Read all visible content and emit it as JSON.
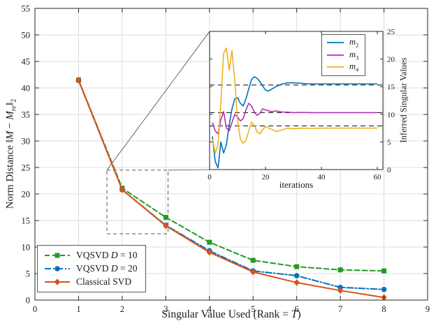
{
  "figure": {
    "bg": "#ffffff",
    "axis_color": "#262626",
    "grid_color": "#dcdcdc"
  },
  "labels": {
    "y": {
      "pre": "Norm Distance ",
      "norm_open": "‖",
      "m1": "M",
      "minus": " − ",
      "m2": "M",
      "sub_re": "re",
      "norm_close": "‖",
      "sub_2": "2"
    },
    "x": {
      "pre": "Singular Value Used (Rank = ",
      "var": "T",
      "post": ")"
    },
    "inset_y": "Inferred Singular Values",
    "inset_x": "iterations"
  },
  "legend": {
    "entries": [
      {
        "pre": "VQSVD ",
        "var": "D",
        "post": " = 10"
      },
      {
        "pre": "VQSVD ",
        "var": "D",
        "post": " = 20"
      },
      {
        "pre": "Classical SVD",
        "var": "",
        "post": ""
      }
    ]
  },
  "inset_legend": {
    "entries": [
      {
        "var": "m",
        "sub": "2"
      },
      {
        "var": "m",
        "sub": "3"
      },
      {
        "var": "m",
        "sub": "4"
      }
    ]
  },
  "chart_data": [
    {
      "type": "line",
      "title": "",
      "xlabel": "Singular Value Used (Rank = T)",
      "ylabel": "Norm Distance ||M - M_re||_2",
      "xlim": [
        0,
        9
      ],
      "ylim": [
        0,
        55
      ],
      "xticks": [
        0,
        1,
        2,
        3,
        4,
        5,
        6,
        7,
        8,
        9
      ],
      "yticks": [
        0,
        5,
        10,
        15,
        20,
        25,
        30,
        35,
        40,
        45,
        50,
        55
      ],
      "grid": true,
      "legend_position": "lower left",
      "series": [
        {
          "name": "VQSVD D = 10",
          "color": "#229b22",
          "dash": "7 4",
          "marker": "square",
          "x": [
            1,
            2,
            3,
            4,
            5,
            6,
            7,
            8
          ],
          "y": [
            41.5,
            21.1,
            15.6,
            10.9,
            7.5,
            6.3,
            5.7,
            5.5
          ]
        },
        {
          "name": "VQSVD D = 20",
          "color": "#0072bd",
          "dash": "9 3 2 3",
          "marker": "circle",
          "x": [
            1,
            2,
            3,
            4,
            5,
            6,
            7,
            8
          ],
          "y": [
            41.4,
            20.8,
            14.1,
            9.3,
            5.5,
            4.6,
            2.4,
            2.0
          ]
        },
        {
          "name": "Classical SVD",
          "color": "#d95319",
          "dash": "",
          "marker": "diamond",
          "x": [
            1,
            2,
            3,
            4,
            5,
            6,
            7,
            8
          ],
          "y": [
            41.5,
            20.8,
            14.0,
            9.0,
            5.3,
            3.3,
            1.8,
            0.5
          ]
        }
      ],
      "zoom_rect": {
        "x": [
          1.65,
          3.05
        ],
        "y": [
          12.5,
          24.5
        ]
      }
    },
    {
      "type": "line",
      "title": "",
      "xlabel": "iterations",
      "ylabel": "Inferred Singular Values",
      "xlim": [
        0,
        62
      ],
      "ylim": [
        0,
        25
      ],
      "xticks": [
        0,
        20,
        40,
        60
      ],
      "yticks": [
        0,
        5,
        10,
        15,
        20,
        25
      ],
      "grid": false,
      "legend_position": "upper right",
      "dashed_target_levels": [
        15.3,
        10.3,
        7.9
      ],
      "series": [
        {
          "name": "m_2",
          "color": "#0072bd",
          "dash": "",
          "x": [
            1,
            2,
            3,
            3.5,
            4,
            5,
            6,
            7,
            8,
            9,
            10,
            11,
            12,
            13,
            14,
            15,
            16,
            17,
            18,
            19,
            20,
            21,
            22,
            24,
            26,
            28,
            30,
            33,
            36,
            40,
            45,
            50,
            55,
            60
          ],
          "y": [
            6,
            1.5,
            0.3,
            2.5,
            5,
            3,
            4.5,
            8,
            11,
            12.8,
            13,
            12,
            11.5,
            12.8,
            14.6,
            16.3,
            16.8,
            16.5,
            15.9,
            15.1,
            14.4,
            14.2,
            14.5,
            15.1,
            15.5,
            15.7,
            15.7,
            15.6,
            15.5,
            15.5,
            15.5,
            15.5,
            15.5,
            15.5
          ]
        },
        {
          "name": "m_3",
          "color": "#b62fb6",
          "dash": "",
          "x": [
            1,
            2,
            3,
            4,
            5,
            6,
            7,
            8,
            9,
            10,
            11,
            12,
            13,
            14,
            15,
            16,
            17,
            18,
            19,
            20,
            22,
            24,
            26,
            28,
            30,
            33,
            36,
            40,
            45,
            50,
            55,
            60
          ],
          "y": [
            8.5,
            7,
            6.5,
            9,
            10.5,
            7.5,
            7,
            8.5,
            10,
            9.5,
            8.8,
            9.2,
            10.8,
            12,
            11.5,
            10.4,
            9.8,
            10.2,
            11,
            10.8,
            10.5,
            10.6,
            10.4,
            10.4,
            10.3,
            10.35,
            10.3,
            10.3,
            10.3,
            10.3,
            10.3,
            10.3
          ]
        },
        {
          "name": "m_4",
          "color": "#edb120",
          "dash": "",
          "x": [
            1,
            2,
            3,
            4,
            5,
            6,
            7,
            8,
            9,
            10,
            11,
            12,
            13,
            14,
            15,
            16,
            17,
            18,
            19,
            20,
            22,
            24,
            26,
            28,
            30,
            33,
            36,
            40,
            45,
            50,
            55,
            60
          ],
          "y": [
            5.5,
            3,
            4.5,
            12,
            21,
            22,
            18,
            21.5,
            16,
            9,
            5.5,
            4.8,
            5.2,
            7,
            8.6,
            8,
            6.8,
            6.5,
            7.2,
            7.8,
            7.3,
            6.9,
            7.2,
            7.5,
            7.4,
            7.5,
            7.45,
            7.5,
            7.5,
            7.5,
            7.5,
            7.5
          ]
        }
      ]
    }
  ]
}
